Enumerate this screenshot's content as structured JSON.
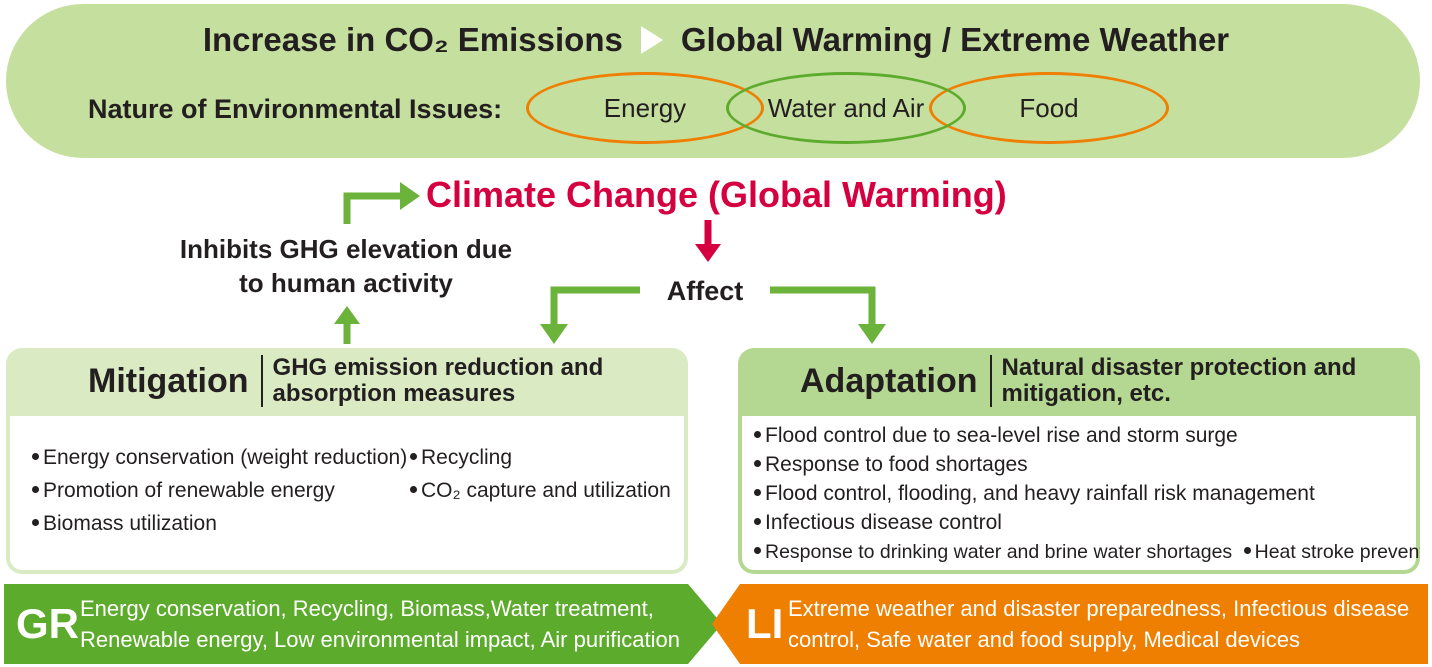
{
  "top": {
    "title_left": "Increase in CO₂ Emissions",
    "title_right": "Global Warming / Extreme Weather",
    "nature_label": "Nature of Environmental Issues:",
    "issues": [
      "Energy",
      "Water and Air",
      "Food"
    ]
  },
  "center": {
    "climate": "Climate Change (Global Warming)",
    "inhibits_line1": "Inhibits GHG elevation due",
    "inhibits_line2": "to human activity",
    "affect": "Affect"
  },
  "mitigation": {
    "name": "Mitigation",
    "desc_line1": "GHG emission reduction and",
    "desc_line2": "absorption measures",
    "items": [
      "Energy conservation (weight reduction)",
      "Promotion of renewable energy",
      "Biomass utilization",
      "Recycling",
      "CO₂ capture and utilization"
    ]
  },
  "adaptation": {
    "name": "Adaptation",
    "desc_line1": "Natural disaster protection and",
    "desc_line2": "mitigation, etc.",
    "items": [
      "Flood control due to sea-level rise and storm surge",
      "Response to food shortages",
      "Flood control, flooding, and heavy rainfall risk management",
      "Infectious disease control",
      "Response to drinking water and brine water shortages",
      "Heat stroke prevention"
    ]
  },
  "gr": {
    "code": "GR",
    "line1": "Energy conservation, Recycling, Biomass,Water treatment,",
    "line2": "Renewable energy, Low environmental impact, Air purification"
  },
  "li": {
    "code": "LI",
    "line1": "Extreme weather and disaster preparedness, Infectious disease",
    "line2": "control, Safe water and food supply, Medical devices"
  },
  "colors": {
    "banner": "#c5df9f",
    "green_arrow": "#6bb33b",
    "red_arrow": "#d5003f",
    "orange": "#ee7f00",
    "green_bar": "#5dab2c"
  }
}
